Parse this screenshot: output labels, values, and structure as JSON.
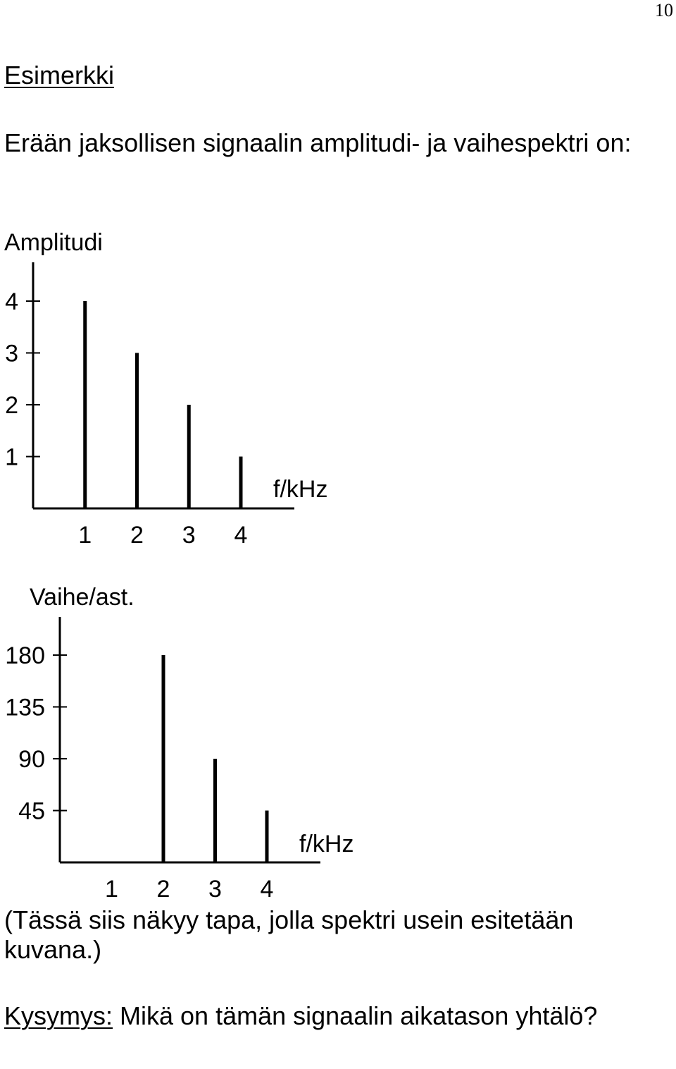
{
  "page_number": "10",
  "heading": "Esimerkki",
  "intro": "Erään jaksollisen signaalin amplitudi- ja vaihespektri on:",
  "note": "(Tässä siis näkyy tapa, jolla spektri usein esitetään kuvana.)",
  "question": {
    "label": "Kysymys:",
    "text": " Mikä on tämän signaalin aikatason yhtälö?"
  },
  "chart_data": [
    {
      "type": "bar",
      "ylabel": "Amplitudi",
      "xlabel": "f/kHz",
      "x": [
        1,
        2,
        3,
        4
      ],
      "values": [
        4,
        3,
        2,
        1
      ],
      "yticks": [
        1,
        2,
        3,
        4
      ],
      "xticks": [
        1,
        2,
        3,
        4
      ],
      "ylim": [
        0,
        4
      ],
      "xlim": [
        0,
        4
      ],
      "grid": false
    },
    {
      "type": "bar",
      "ylabel": "Vaihe/ast.",
      "xlabel": "f/kHz",
      "x": [
        1,
        2,
        3,
        4
      ],
      "values": [
        0,
        180,
        90,
        45
      ],
      "yticks": [
        45,
        90,
        135,
        180
      ],
      "xticks": [
        1,
        2,
        3,
        4
      ],
      "ylim": [
        0,
        180
      ],
      "xlim": [
        0,
        4
      ],
      "grid": false
    }
  ]
}
